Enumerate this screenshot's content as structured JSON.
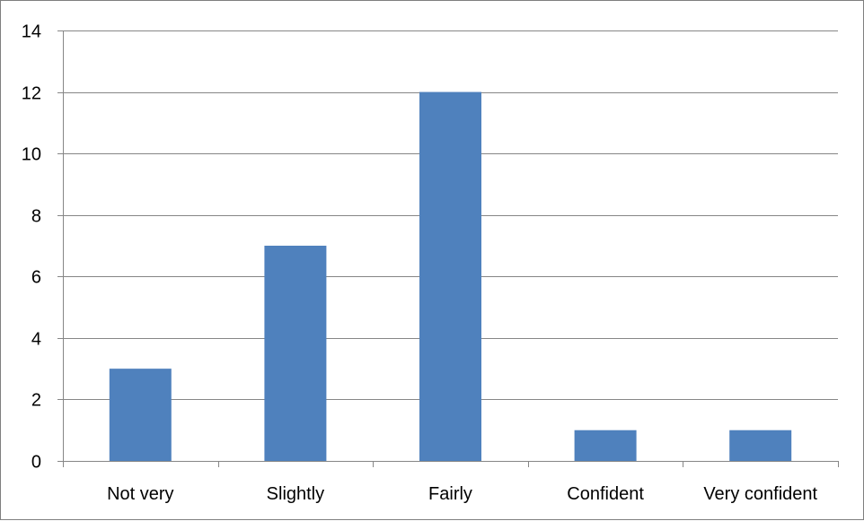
{
  "chart_data": {
    "type": "bar",
    "categories": [
      "Not very",
      "Slightly",
      "Fairly",
      "Confident",
      "Very confident"
    ],
    "values": [
      3,
      7,
      12,
      1,
      1
    ],
    "title": "",
    "xlabel": "",
    "ylabel": "",
    "ylim": [
      0,
      14
    ],
    "yticks": [
      0,
      2,
      4,
      6,
      8,
      10,
      12,
      14
    ],
    "grid": "horizontal",
    "legend": "none",
    "colors": {
      "bar": "#4f81bd",
      "grid": "#868686",
      "axis": "#868686",
      "frame": "#7f7f7f"
    }
  }
}
